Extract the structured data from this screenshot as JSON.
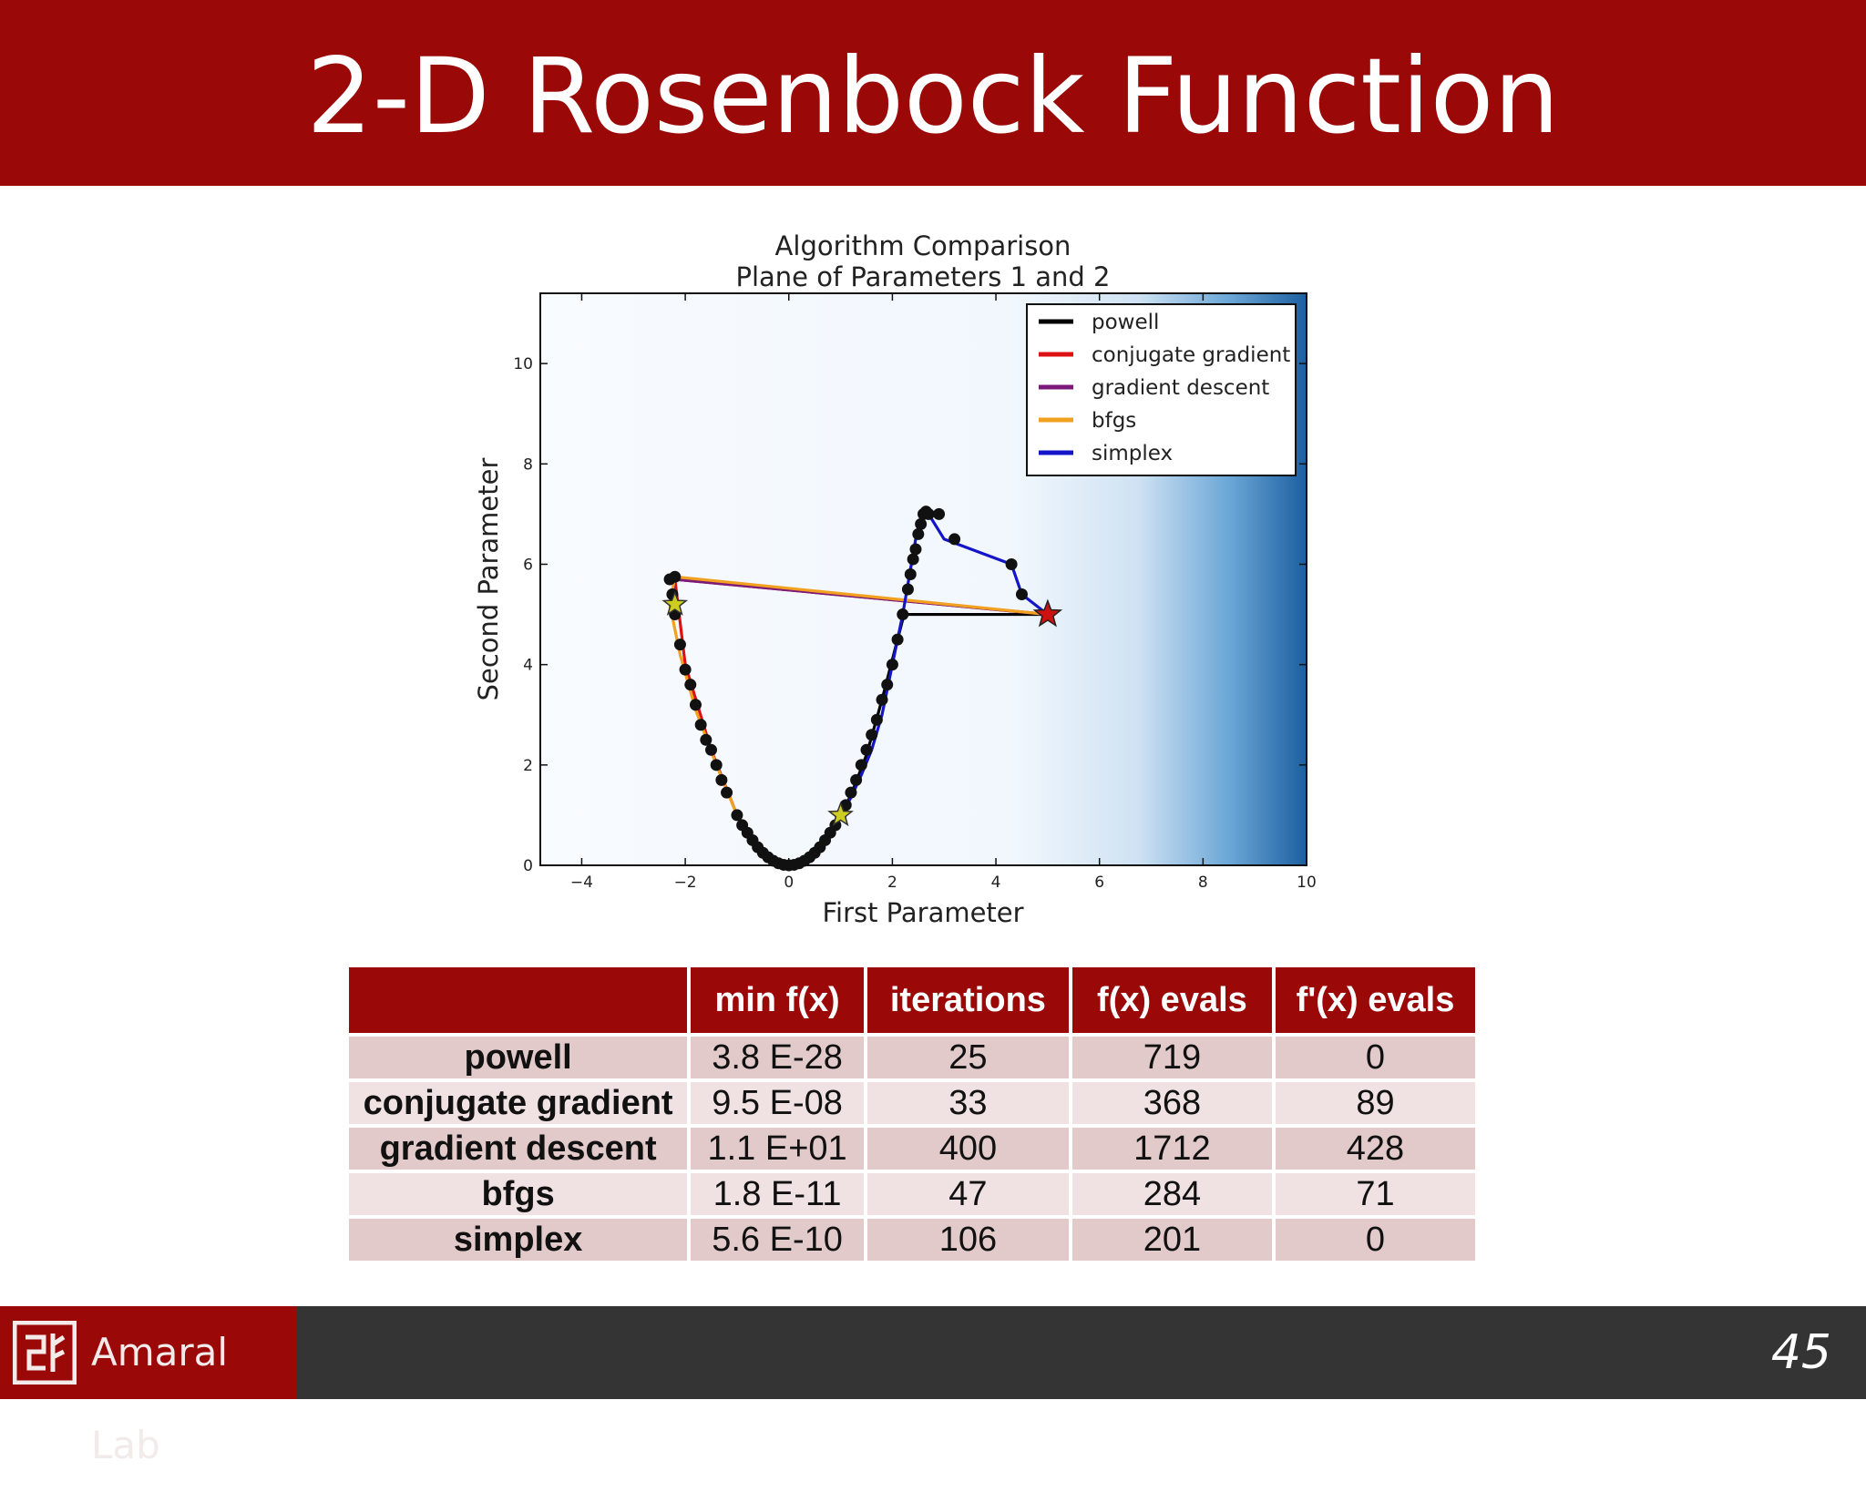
{
  "slide": {
    "title": "2-D Rosenbock Function",
    "page_number": "45",
    "logo_text": "Amaral Lab",
    "colors": {
      "header": "#9b0808",
      "footer": "#343434"
    }
  },
  "chart_data": {
    "type": "line",
    "title": "Algorithm Comparison",
    "subtitle": "Plane of Parameters 1 and 2",
    "xlabel": "First Parameter",
    "ylabel": "Second Parameter",
    "xlim": [
      -4.8,
      10
    ],
    "ylim": [
      0,
      11.4
    ],
    "xticks": [
      -4,
      -2,
      0,
      2,
      4,
      6,
      8,
      10
    ],
    "yticks": [
      0,
      2,
      4,
      6,
      8,
      10
    ],
    "xtick_labels": [
      "−4",
      "−2",
      "0",
      "2",
      "4",
      "6",
      "8",
      "10"
    ],
    "ytick_labels": [
      "0",
      "2",
      "4",
      "6",
      "8",
      "10"
    ],
    "background": "white-to-blue gradient increasing toward x = 10",
    "legend_position": "top-right",
    "start_marker": {
      "x": 5,
      "y": 5,
      "color": "#cc1111",
      "shape": "star"
    },
    "end_markers": [
      {
        "x": 1,
        "y": 1,
        "color": "#cccc22",
        "shape": "star"
      },
      {
        "x": -2.2,
        "y": 5.2,
        "color": "#cccc22",
        "shape": "star"
      }
    ],
    "series": [
      {
        "name": "powell",
        "color": "#000000",
        "x": [
          5,
          2.3,
          2.2,
          1.8,
          1.5,
          1.2,
          1.0
        ],
        "y": [
          5,
          5,
          4.9,
          3.3,
          2.2,
          1.4,
          1.0
        ]
      },
      {
        "name": "conjugate gradient",
        "color": "#dd1111",
        "x": [
          5,
          -2.2,
          -2.0,
          -1.5,
          -1.0,
          -0.5,
          0,
          0.5,
          1.0
        ],
        "y": [
          5,
          5.7,
          4.0,
          2.3,
          1.0,
          0.25,
          0,
          0.25,
          1.0
        ]
      },
      {
        "name": "gradient descent",
        "color": "#7b1a7b",
        "x": [
          5,
          -2.2,
          -2.25
        ],
        "y": [
          5,
          5.7,
          5.2
        ]
      },
      {
        "name": "bfgs",
        "color": "#f2a020",
        "x": [
          5,
          -2.2,
          -2.3,
          -2.1,
          -1.8,
          -1.4,
          -1.0,
          -0.6,
          -0.3,
          0,
          0.4,
          0.8,
          1.0
        ],
        "y": [
          5,
          5.75,
          5.2,
          4.2,
          3.1,
          2.0,
          1.0,
          0.35,
          0.1,
          0,
          0.15,
          0.6,
          1.0
        ]
      },
      {
        "name": "simplex",
        "color": "#1414c8",
        "x": [
          5,
          4.5,
          4.3,
          3.0,
          2.7,
          2.6,
          2.45,
          2.2,
          2.0,
          1.8,
          1.6,
          1.4,
          1.2,
          1.0
        ],
        "y": [
          5,
          5.4,
          6.0,
          6.5,
          7.0,
          7.0,
          6.5,
          5.0,
          4.0,
          3.0,
          2.3,
          1.8,
          1.35,
          1.0
        ]
      }
    ],
    "iterate_points": {
      "color": "#111111",
      "x": [
        -2.3,
        -2.2,
        -2.25,
        -2.2,
        -2.1,
        -2.0,
        -1.9,
        -1.8,
        -1.7,
        -1.6,
        -1.5,
        -1.4,
        -1.3,
        -1.2,
        -1.0,
        -0.9,
        -0.8,
        -0.7,
        -0.6,
        -0.5,
        -0.4,
        -0.3,
        -0.2,
        -0.1,
        0,
        0.1,
        0.2,
        0.3,
        0.4,
        0.5,
        0.6,
        0.7,
        0.8,
        0.9,
        1.0,
        1.1,
        1.2,
        1.3,
        1.4,
        1.5,
        1.6,
        1.7,
        1.8,
        1.9,
        2.0,
        2.1,
        2.2,
        2.3,
        2.35,
        2.4,
        2.45,
        2.5,
        2.55,
        2.6,
        2.65,
        2.7,
        2.9,
        3.2,
        4.3,
        4.5
      ],
      "y": [
        5.7,
        5.75,
        5.4,
        5.0,
        4.4,
        3.9,
        3.6,
        3.2,
        2.8,
        2.5,
        2.3,
        2.0,
        1.7,
        1.45,
        1.0,
        0.8,
        0.65,
        0.5,
        0.36,
        0.25,
        0.16,
        0.09,
        0.04,
        0.01,
        0,
        0.01,
        0.04,
        0.09,
        0.16,
        0.25,
        0.36,
        0.5,
        0.65,
        0.8,
        1.0,
        1.2,
        1.45,
        1.7,
        2.0,
        2.3,
        2.6,
        2.9,
        3.3,
        3.6,
        4.0,
        4.5,
        5.0,
        5.5,
        5.8,
        6.1,
        6.3,
        6.6,
        6.8,
        7.0,
        7.05,
        7.0,
        7.0,
        6.5,
        6.0,
        5.4
      ]
    }
  },
  "table": {
    "headers": [
      "",
      "min f(x)",
      "iterations",
      "f(x) evals",
      "f'(x) evals"
    ],
    "rows": [
      [
        "powell",
        "3.8 E-28",
        "25",
        "719",
        "0"
      ],
      [
        "conjugate gradient",
        "9.5 E-08",
        "33",
        "368",
        "89"
      ],
      [
        "gradient descent",
        "1.1 E+01",
        "400",
        "1712",
        "428"
      ],
      [
        "bfgs",
        "1.8 E-11",
        "47",
        "284",
        "71"
      ],
      [
        "simplex",
        "5.6 E-10",
        "106",
        "201",
        "0"
      ]
    ]
  }
}
